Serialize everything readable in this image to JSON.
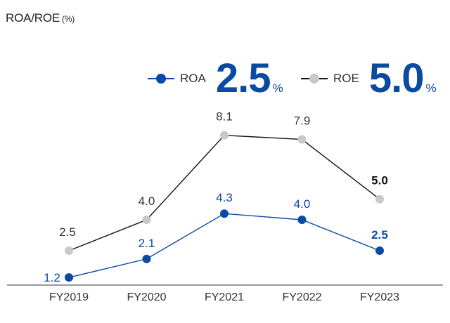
{
  "header": {
    "title": "ROA/ROE",
    "unit": "(%)"
  },
  "colors": {
    "roa": "#0b4aa2",
    "roe": "#c8c8c8",
    "roe_line": "#111111",
    "axis": "#333333",
    "label": "#333333"
  },
  "legend": {
    "roa": {
      "label": "ROA",
      "value": "2.5",
      "unit": "%"
    },
    "roe": {
      "label": "ROE",
      "value": "5.0",
      "unit": "%"
    }
  },
  "chart_data": {
    "type": "line",
    "categories": [
      "FY2019",
      "FY2020",
      "FY2021",
      "FY2022",
      "FY2023"
    ],
    "series": [
      {
        "name": "ROE",
        "values": [
          2.5,
          4.0,
          8.1,
          7.9,
          5.0
        ],
        "labels": [
          "2.5",
          "4.0",
          "8.1",
          "7.9",
          "5.0"
        ]
      },
      {
        "name": "ROA",
        "values": [
          1.2,
          2.1,
          4.3,
          4.0,
          2.5
        ],
        "labels": [
          "1.2",
          "2.1",
          "4.3",
          "4.0",
          "2.5"
        ]
      }
    ],
    "title": "ROA/ROE",
    "ylabel": "%",
    "ylim": [
      0,
      9
    ],
    "grid": false,
    "legend_position": "top-right"
  }
}
